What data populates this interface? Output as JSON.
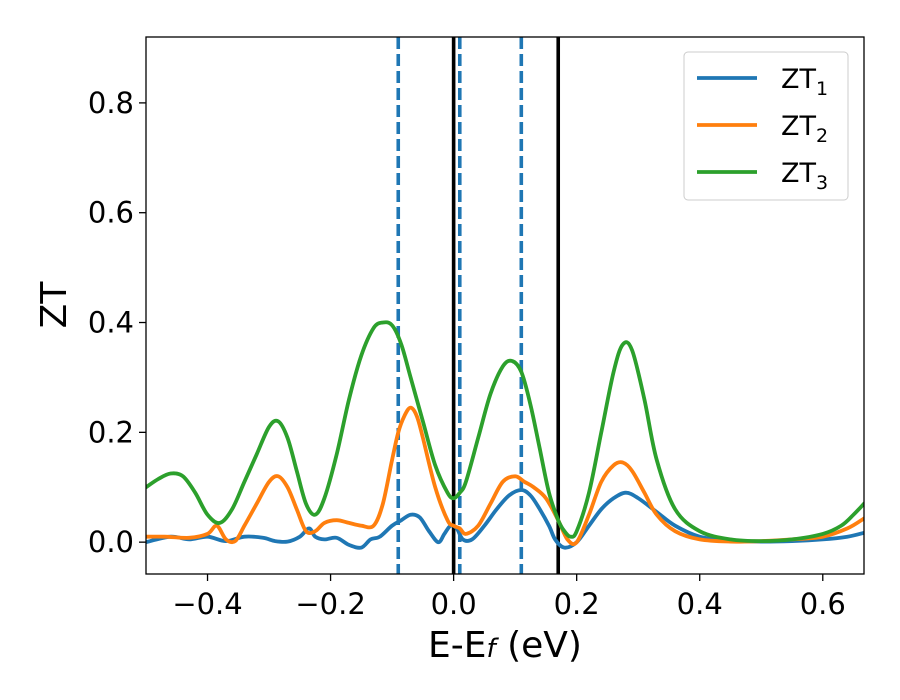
{
  "chart_data": {
    "type": "line",
    "xlabel": "E-E",
    "xlabel_sub": "f",
    "xlabel_unit": " (eV)",
    "ylabel": "ZT",
    "xlim": [
      -0.5,
      0.667
    ],
    "ylim": [
      -0.058,
      0.92
    ],
    "xticks": [
      -0.4,
      -0.2,
      0.0,
      0.2,
      0.4,
      0.6
    ],
    "xtick_labels": [
      "−0.4",
      "−0.2",
      "0.0",
      "0.2",
      "0.4",
      "0.6"
    ],
    "yticks": [
      0.0,
      0.2,
      0.4,
      0.6,
      0.8
    ],
    "ytick_labels": [
      "0.0",
      "0.2",
      "0.4",
      "0.6",
      "0.8"
    ],
    "grid": false,
    "legend_position": "top-right",
    "vlines": [
      {
        "x": -0.09,
        "style": "dashed",
        "color": "#1f77b4"
      },
      {
        "x": 0.01,
        "style": "dashed",
        "color": "#1f77b4"
      },
      {
        "x": 0.11,
        "style": "dashed",
        "color": "#1f77b4"
      },
      {
        "x": 0.0,
        "style": "solid",
        "color": "#000000"
      },
      {
        "x": 0.17,
        "style": "solid",
        "color": "#000000"
      }
    ],
    "series": [
      {
        "name": "ZT",
        "sub": "1",
        "color": "#1f77b4",
        "x": [
          -0.5,
          -0.46,
          -0.43,
          -0.4,
          -0.37,
          -0.34,
          -0.31,
          -0.29,
          -0.27,
          -0.25,
          -0.235,
          -0.225,
          -0.21,
          -0.19,
          -0.17,
          -0.15,
          -0.135,
          -0.12,
          -0.1,
          -0.085,
          -0.07,
          -0.055,
          -0.04,
          -0.025,
          -0.015,
          -0.005,
          0.005,
          0.015,
          0.03,
          0.05,
          0.07,
          0.09,
          0.11,
          0.125,
          0.14,
          0.155,
          0.165,
          0.18,
          0.2,
          0.22,
          0.24,
          0.26,
          0.28,
          0.3,
          0.33,
          0.36,
          0.4,
          0.45,
          0.5,
          0.55,
          0.6,
          0.64,
          0.667
        ],
        "y": [
          0.0,
          0.01,
          0.005,
          0.01,
          0.002,
          0.01,
          0.008,
          0.002,
          0.001,
          0.01,
          0.025,
          0.01,
          0.005,
          0.008,
          -0.005,
          -0.01,
          0.005,
          0.01,
          0.03,
          0.04,
          0.05,
          0.045,
          0.02,
          0.0,
          0.015,
          0.03,
          0.025,
          0.005,
          0.005,
          0.03,
          0.06,
          0.085,
          0.095,
          0.085,
          0.06,
          0.03,
          0.005,
          -0.01,
          0.0,
          0.03,
          0.06,
          0.08,
          0.09,
          0.08,
          0.055,
          0.03,
          0.01,
          0.003,
          0.001,
          0.002,
          0.005,
          0.01,
          0.017
        ]
      },
      {
        "name": "ZT",
        "sub": "2",
        "color": "#ff7f0e",
        "x": [
          -0.5,
          -0.47,
          -0.43,
          -0.4,
          -0.385,
          -0.37,
          -0.355,
          -0.34,
          -0.32,
          -0.3,
          -0.285,
          -0.27,
          -0.255,
          -0.24,
          -0.225,
          -0.21,
          -0.19,
          -0.17,
          -0.15,
          -0.13,
          -0.115,
          -0.1,
          -0.09,
          -0.08,
          -0.07,
          -0.06,
          -0.05,
          -0.03,
          -0.01,
          0.0,
          0.01,
          0.02,
          0.04,
          0.06,
          0.08,
          0.1,
          0.115,
          0.13,
          0.15,
          0.17,
          0.185,
          0.2,
          0.22,
          0.24,
          0.26,
          0.275,
          0.29,
          0.31,
          0.33,
          0.36,
          0.4,
          0.45,
          0.5,
          0.55,
          0.6,
          0.64,
          0.667
        ],
        "y": [
          0.01,
          0.01,
          0.008,
          0.015,
          0.03,
          0.005,
          0.002,
          0.03,
          0.07,
          0.11,
          0.12,
          0.1,
          0.06,
          0.02,
          0.02,
          0.035,
          0.04,
          0.035,
          0.03,
          0.03,
          0.07,
          0.15,
          0.2,
          0.23,
          0.245,
          0.23,
          0.19,
          0.1,
          0.04,
          0.03,
          0.025,
          0.015,
          0.03,
          0.07,
          0.11,
          0.12,
          0.11,
          0.1,
          0.08,
          0.04,
          0.005,
          0.0,
          0.05,
          0.11,
          0.14,
          0.145,
          0.13,
          0.09,
          0.05,
          0.02,
          0.005,
          0.001,
          0.002,
          0.005,
          0.01,
          0.025,
          0.043
        ]
      },
      {
        "name": "ZT",
        "sub": "3",
        "color": "#2ca02c",
        "x": [
          -0.5,
          -0.48,
          -0.46,
          -0.44,
          -0.42,
          -0.4,
          -0.38,
          -0.36,
          -0.34,
          -0.32,
          -0.3,
          -0.285,
          -0.27,
          -0.255,
          -0.24,
          -0.225,
          -0.21,
          -0.19,
          -0.17,
          -0.15,
          -0.13,
          -0.115,
          -0.1,
          -0.085,
          -0.07,
          -0.05,
          -0.03,
          -0.01,
          0.0,
          0.01,
          0.02,
          0.04,
          0.06,
          0.08,
          0.095,
          0.11,
          0.125,
          0.14,
          0.155,
          0.17,
          0.18,
          0.19,
          0.2,
          0.22,
          0.24,
          0.26,
          0.275,
          0.29,
          0.31,
          0.33,
          0.36,
          0.4,
          0.45,
          0.5,
          0.55,
          0.6,
          0.63,
          0.65,
          0.667
        ],
        "y": [
          0.1,
          0.115,
          0.125,
          0.12,
          0.09,
          0.05,
          0.035,
          0.06,
          0.11,
          0.16,
          0.21,
          0.22,
          0.19,
          0.13,
          0.07,
          0.05,
          0.08,
          0.16,
          0.26,
          0.34,
          0.39,
          0.4,
          0.395,
          0.36,
          0.3,
          0.22,
          0.14,
          0.09,
          0.08,
          0.09,
          0.11,
          0.19,
          0.27,
          0.32,
          0.33,
          0.31,
          0.25,
          0.17,
          0.09,
          0.04,
          0.02,
          0.01,
          0.02,
          0.09,
          0.2,
          0.31,
          0.36,
          0.35,
          0.26,
          0.15,
          0.06,
          0.02,
          0.005,
          0.002,
          0.005,
          0.015,
          0.03,
          0.05,
          0.07
        ]
      }
    ]
  }
}
